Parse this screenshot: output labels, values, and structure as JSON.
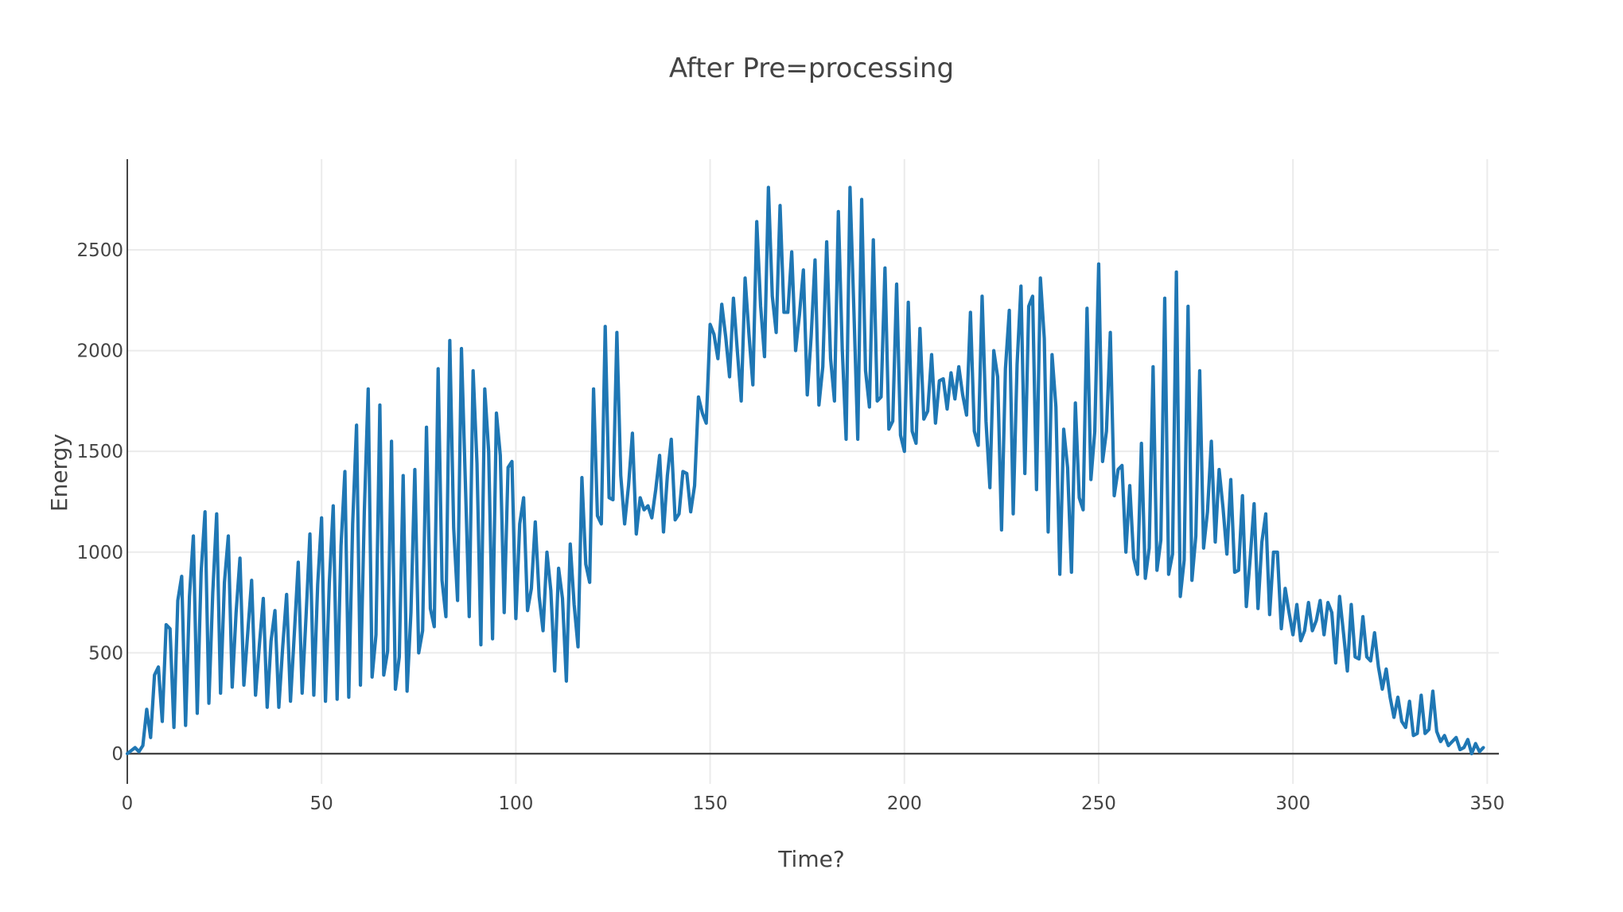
{
  "chart_data": {
    "type": "line",
    "title": "After Pre=processing",
    "xlabel": "Time?",
    "ylabel": "Energy",
    "xlim": [
      0,
      353
    ],
    "ylim": [
      -150,
      2950
    ],
    "xticks": [
      0,
      50,
      100,
      150,
      200,
      250,
      300,
      350
    ],
    "yticks": [
      0,
      500,
      1000,
      1500,
      2000,
      2500
    ],
    "grid": true,
    "legend": "none",
    "color": "#1f77b4",
    "series": [
      {
        "values": [
          0,
          15,
          30,
          10,
          40,
          220,
          80,
          390,
          430,
          160,
          640,
          620,
          130,
          760,
          880,
          140,
          780,
          1080,
          200,
          900,
          1200,
          250,
          800,
          1190,
          300,
          850,
          1080,
          330,
          700,
          970,
          340,
          600,
          860,
          290,
          540,
          770,
          230,
          560,
          710,
          230,
          530,
          790,
          260,
          600,
          950,
          300,
          680,
          1090,
          290,
          840,
          1170,
          260,
          850,
          1230,
          270,
          1030,
          1400,
          280,
          1140,
          1630,
          340,
          1200,
          1810,
          380,
          590,
          1730,
          390,
          510,
          1550,
          320,
          480,
          1380,
          310,
          700,
          1410,
          500,
          610,
          1620,
          720,
          630,
          1910,
          860,
          680,
          2050,
          1120,
          760,
          2010,
          1350,
          680,
          1900,
          1440,
          540,
          1810,
          1500,
          570,
          1690,
          1480,
          700,
          1420,
          1450,
          670,
          1140,
          1270,
          710,
          820,
          1150,
          780,
          610,
          1000,
          810,
          410,
          920,
          770,
          360,
          1040,
          740,
          530,
          1370,
          940,
          850,
          1810,
          1180,
          1140,
          2120,
          1270,
          1260,
          2090,
          1380,
          1140,
          1330,
          1590,
          1090,
          1270,
          1210,
          1230,
          1170,
          1310,
          1480,
          1100,
          1380,
          1560,
          1160,
          1190,
          1400,
          1390,
          1200,
          1330,
          1770,
          1690,
          1640,
          2130,
          2080,
          1960,
          2230,
          2070,
          1870,
          2260,
          2000,
          1750,
          2360,
          2080,
          1830,
          2640,
          2220,
          1970,
          2810,
          2270,
          2090,
          2720,
          2190,
          2190,
          2490,
          2000,
          2180,
          2400,
          1780,
          2070,
          2450,
          1730,
          1920,
          2540,
          1960,
          1750,
          2690,
          2010,
          1560,
          2810,
          2200,
          1560,
          2750,
          1900,
          1720,
          2550,
          1750,
          1770,
          2410,
          1610,
          1650,
          2330,
          1580,
          1500,
          2240,
          1600,
          1540,
          2110,
          1660,
          1700,
          1980,
          1640,
          1850,
          1860,
          1710,
          1890,
          1760,
          1920,
          1780,
          1680,
          2190,
          1600,
          1530,
          2270,
          1650,
          1320,
          2000,
          1870,
          1110,
          1910,
          2200,
          1190,
          1930,
          2320,
          1390,
          2220,
          2270,
          1310,
          2360,
          2060,
          1100,
          1980,
          1720,
          890,
          1610,
          1420,
          900,
          1740,
          1270,
          1210,
          2210,
          1360,
          1600,
          2430,
          1450,
          1600,
          2090,
          1280,
          1410,
          1430,
          1000,
          1330,
          970,
          890,
          1540,
          870,
          1020,
          1920,
          910,
          1060,
          2260,
          890,
          990,
          2390,
          780,
          960,
          2220,
          860,
          1080,
          1900,
          1020,
          1200,
          1550,
          1050,
          1410,
          1220,
          990,
          1360,
          900,
          910,
          1280,
          730,
          970,
          1240,
          720,
          1050,
          1190,
          690,
          1000,
          1000,
          620,
          820,
          700,
          590,
          740,
          560,
          610,
          750,
          610,
          660,
          760,
          590,
          750,
          700,
          450,
          780,
          600,
          410,
          740,
          480,
          470,
          680,
          480,
          460,
          600,
          430,
          320,
          420,
          280,
          180,
          280,
          160,
          130,
          260,
          90,
          100,
          290,
          100,
          120,
          310,
          110,
          60,
          90,
          40,
          60,
          80,
          20,
          30,
          70,
          0,
          50,
          10,
          30
        ]
      }
    ]
  }
}
